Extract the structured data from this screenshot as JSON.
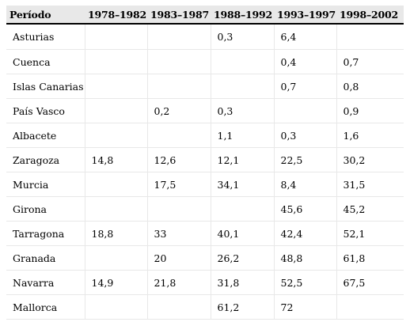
{
  "table": {
    "columns": [
      "Período",
      "1978–1982",
      "1983–1987",
      "1988–1992",
      "1993–1997",
      "1998–2002"
    ],
    "rows": [
      [
        "Asturias",
        "",
        "",
        "0,3",
        "6,4",
        ""
      ],
      [
        "Cuenca",
        "",
        "",
        "",
        "0,4",
        "0,7"
      ],
      [
        "Islas Canarias",
        "",
        "",
        "",
        "0,7",
        "0,8"
      ],
      [
        "País Vasco",
        "",
        "0,2",
        "0,3",
        "",
        "0,9"
      ],
      [
        "Albacete",
        "",
        "",
        "1,1",
        "0,3",
        "1,6"
      ],
      [
        "Zaragoza",
        "14,8",
        "12,6",
        "12,1",
        "22,5",
        "30,2"
      ],
      [
        "Murcia",
        "",
        "17,5",
        "34,1",
        "8,4",
        "31,5"
      ],
      [
        "Girona",
        "",
        "",
        "",
        "45,6",
        "45,2"
      ],
      [
        "Tarragona",
        "18,8",
        "33",
        "40,1",
        "42,4",
        "52,1"
      ],
      [
        "Granada",
        "",
        "20",
        "26,2",
        "48,8",
        "61,8"
      ],
      [
        "Navarra",
        "14,9",
        "21,8",
        "31,8",
        "52,5",
        "67,5"
      ],
      [
        "Mallorca",
        "",
        "",
        "61,2",
        "72",
        ""
      ]
    ]
  }
}
